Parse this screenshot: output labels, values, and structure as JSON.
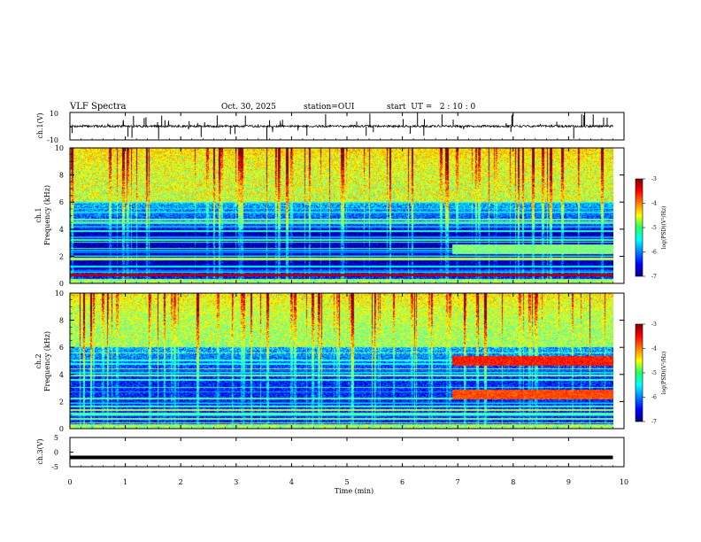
{
  "header": {
    "title": "VLF Spectra",
    "date": "Oct. 30, 2025",
    "station": "station=OUI",
    "start_ut": "start  UT =   2 : 10 : 0"
  },
  "chart_data": [
    {
      "type": "line",
      "name": "ch1-waveform",
      "ylabel": "ch.1(V)",
      "ylim": [
        -10,
        10
      ],
      "yticks": [
        "10",
        "-10"
      ],
      "xlim": [
        0,
        10
      ],
      "baseline": 0,
      "description_series": "noisy waveform centered near 0 V with impulsive spikes"
    },
    {
      "type": "heatmap",
      "name": "ch1-spectrogram",
      "ylabel": "ch.1\nFrequency (kHz)",
      "ylabel_lines": [
        "ch.1",
        "Frequency (kHz)"
      ],
      "ylim": [
        0,
        10
      ],
      "yticks": [
        "0",
        "2",
        "4",
        "6",
        "8",
        "10"
      ],
      "xlim": [
        0,
        9.8
      ],
      "colorbar": {
        "label": "log(PSD)(V²/Hz)",
        "range": [
          -7,
          -3
        ],
        "ticks": [
          "-3",
          "-4",
          "-5",
          "-6",
          "-7"
        ]
      },
      "features": [
        {
          "kind": "broadband_high",
          "from_khz": 6,
          "to_khz": 10,
          "level": -4
        },
        {
          "kind": "quiet_band",
          "from_khz": 1,
          "to_khz": 4,
          "level": -6.3
        },
        {
          "kind": "tone",
          "freq_khz": 0.6,
          "level": -3.2
        },
        {
          "kind": "emission",
          "from_min": 6.9,
          "to_min": 9.8,
          "freq_khz": 2.5,
          "level": -5
        }
      ]
    },
    {
      "type": "heatmap",
      "name": "ch2-spectrogram",
      "ylabel": "ch.2\nFrequency (kHz)",
      "ylabel_lines": [
        "ch.2",
        "Frequency (kHz)"
      ],
      "ylim": [
        0,
        10
      ],
      "yticks": [
        "0",
        "2",
        "4",
        "6",
        "8",
        "10"
      ],
      "xlim": [
        0,
        9.8
      ],
      "colorbar": {
        "label": "log(PSD)(V²/Hz)",
        "range": [
          -7,
          -3
        ],
        "ticks": [
          "-3",
          "-4",
          "-5",
          "-6",
          "-7"
        ]
      },
      "features": [
        {
          "kind": "broadband_high",
          "from_khz": 6,
          "to_khz": 10,
          "level": -4.2
        },
        {
          "kind": "emission",
          "from_min": 6.9,
          "to_min": 9.8,
          "freq_khz": 5.0,
          "level": -3.6
        },
        {
          "kind": "emission",
          "from_min": 6.9,
          "to_min": 9.8,
          "freq_khz": 2.5,
          "level": -3.8
        }
      ]
    },
    {
      "type": "line",
      "name": "ch3-trace",
      "ylabel": "ch.3(V)",
      "ylim": [
        -5,
        5
      ],
      "yticks": [
        "5",
        "0",
        "-5"
      ],
      "xlim": [
        0,
        9.8
      ],
      "constant_value": -1.8
    }
  ],
  "xaxis": {
    "label": "Time (min)",
    "range": [
      0,
      10
    ],
    "ticks": [
      "0",
      "1",
      "2",
      "3",
      "4",
      "5",
      "6",
      "7",
      "8",
      "9",
      "10"
    ]
  }
}
